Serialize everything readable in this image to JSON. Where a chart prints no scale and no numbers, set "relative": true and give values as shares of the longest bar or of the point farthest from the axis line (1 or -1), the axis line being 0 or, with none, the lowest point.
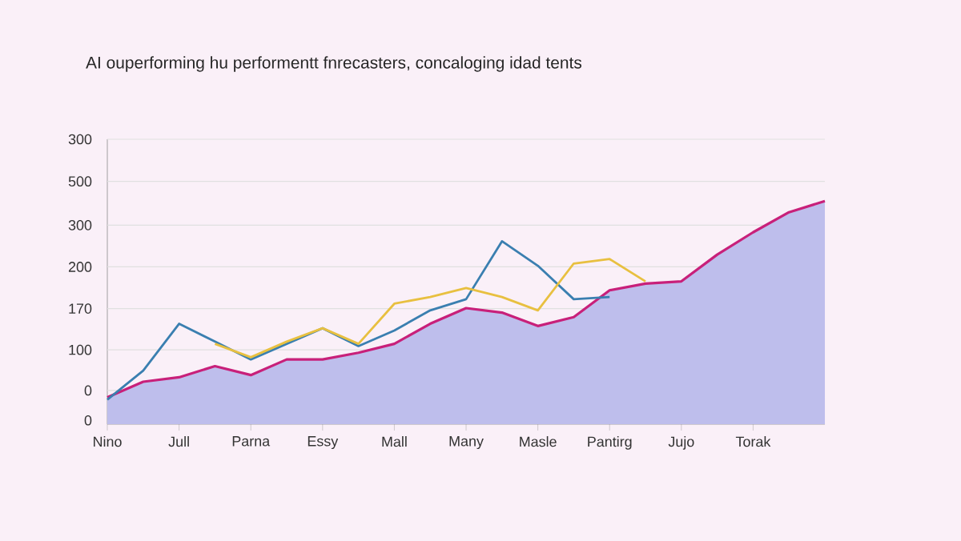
{
  "chart_data": {
    "type": "line",
    "title": "AI ouperforming hu performentt fnrecasters, concaloging idad tents",
    "categories": [
      "Nino",
      null,
      "Jull",
      null,
      "Parna",
      null,
      "Essy",
      null,
      "Mall",
      null,
      "Many",
      null,
      "Masle",
      null,
      "Pantirg",
      null,
      "Jujo",
      null,
      "Torak",
      null,
      null
    ],
    "relative": true,
    "annotations": [
      "0",
      "0",
      "100",
      "170",
      "200",
      "300",
      "500",
      "300"
    ],
    "grid": "y",
    "series": [
      {
        "type": "area",
        "color": "#bebeec",
        "values": [
          0.12,
          0.19,
          0.21,
          0.26,
          0.22,
          0.29,
          0.29,
          0.32,
          0.36,
          0.45,
          0.52,
          0.5,
          0.44,
          0.48,
          0.6,
          0.63,
          0.64,
          0.76,
          0.86,
          0.95,
          1
        ]
      },
      {
        "color": "#c8207a",
        "values": [
          0.12,
          0.19,
          0.21,
          0.26,
          0.22,
          0.29,
          0.29,
          0.32,
          0.36,
          0.45,
          0.52,
          0.5,
          0.44,
          0.48,
          0.6,
          0.63,
          0.64,
          0.76,
          0.86,
          0.95,
          1
        ]
      },
      {
        "color": "#3a7fb0",
        "values": [
          0.11,
          0.24,
          0.45,
          0.37,
          0.29,
          0.36,
          0.43,
          0.35,
          0.42,
          0.51,
          0.56,
          0.82,
          0.71,
          0.56,
          0.57,
          null,
          null,
          null,
          null,
          null,
          null
        ]
      },
      {
        "color": "#e8c040",
        "values": [
          null,
          null,
          null,
          0.36,
          0.3,
          0.37,
          0.43,
          0.36,
          0.54,
          0.57,
          0.61,
          0.57,
          0.51,
          0.72,
          0.74,
          0.64,
          null,
          null,
          null,
          null,
          null
        ]
      }
    ]
  }
}
